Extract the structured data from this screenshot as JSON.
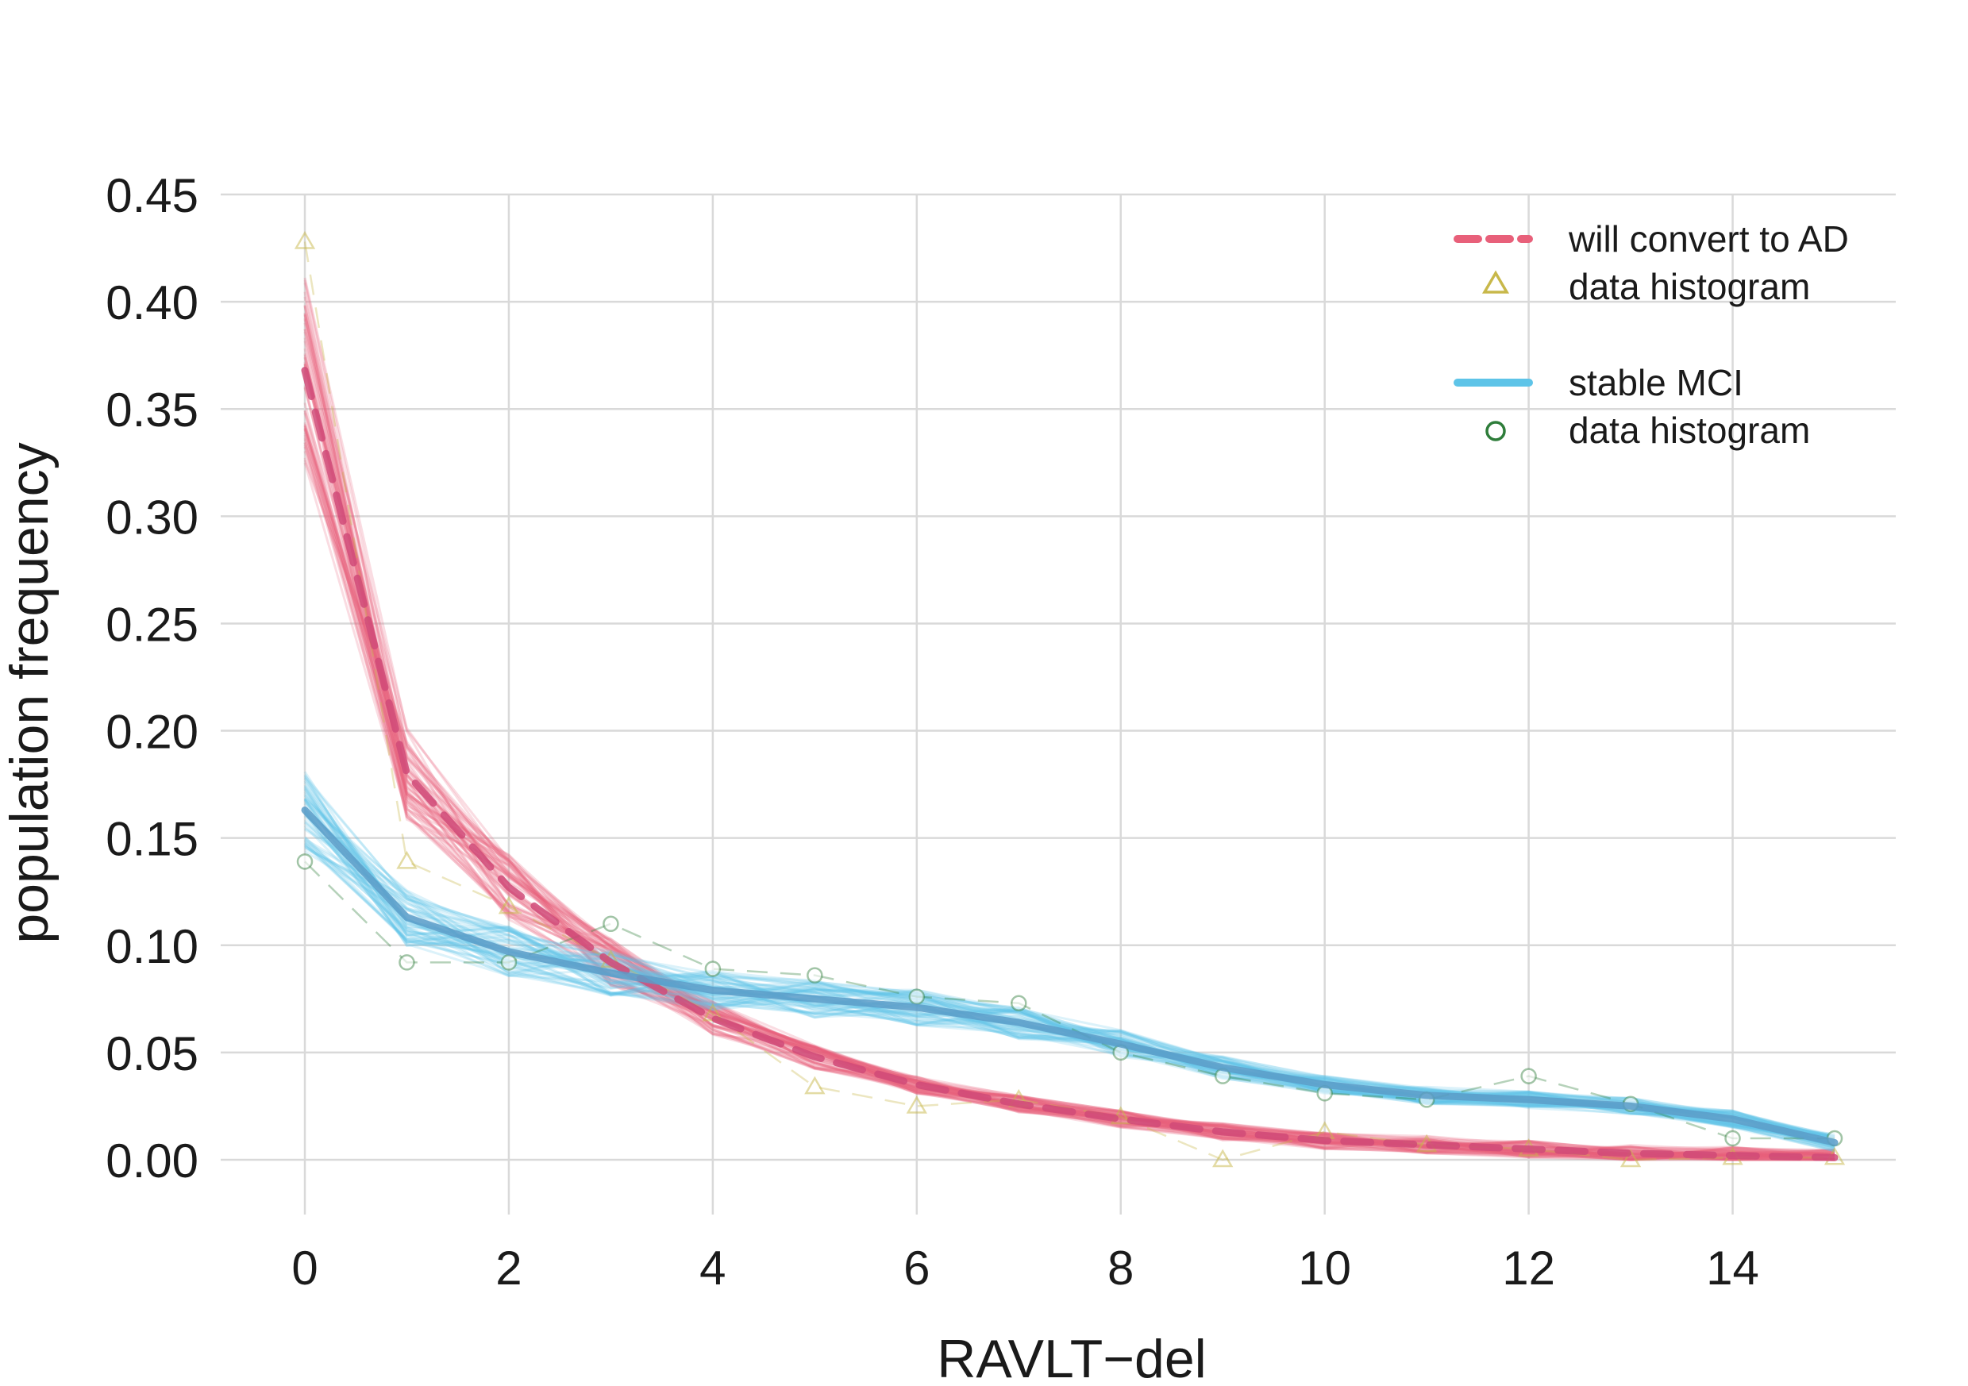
{
  "chart_data": {
    "type": "line",
    "xlabel": "RAVLT−del",
    "ylabel": "population frequency",
    "xlim": [
      -0.8,
      15.6
    ],
    "ylim": [
      -0.025,
      0.455
    ],
    "x_ticks": [
      0,
      2,
      4,
      6,
      8,
      10,
      12,
      14
    ],
    "y_ticks": [
      "0.00",
      "0.05",
      "0.10",
      "0.15",
      "0.20",
      "0.25",
      "0.30",
      "0.35",
      "0.40",
      "0.45"
    ],
    "grid": true,
    "legend_position": "top-right",
    "x": [
      0,
      1,
      2,
      3,
      4,
      5,
      6,
      7,
      8,
      9,
      10,
      11,
      12,
      13,
      14,
      15
    ],
    "series": [
      {
        "name": "will convert to AD",
        "style": "dashed",
        "color": "#e8607a",
        "mean_color": "#d04a78",
        "values": [
          0.368,
          0.18,
          0.127,
          0.092,
          0.066,
          0.048,
          0.035,
          0.026,
          0.019,
          0.013,
          0.009,
          0.007,
          0.005,
          0.003,
          0.002,
          0.001
        ],
        "data_histogram": {
          "name": "data histogram",
          "marker": "triangle",
          "color": "#c8b84a",
          "values": [
            0.428,
            0.139,
            0.118,
            0.093,
            0.068,
            0.034,
            0.025,
            0.028,
            0.02,
            0.0,
            0.013,
            0.007,
            0.005,
            0.0,
            0.001,
            0.001
          ]
        }
      },
      {
        "name": "stable MCI",
        "style": "solid",
        "color": "#5ec4e8",
        "mean_color": "#5b9cc8",
        "values": [
          0.163,
          0.113,
          0.097,
          0.087,
          0.079,
          0.075,
          0.071,
          0.064,
          0.054,
          0.043,
          0.035,
          0.03,
          0.028,
          0.025,
          0.019,
          0.008
        ],
        "data_histogram": {
          "name": "data histogram",
          "marker": "circle",
          "color": "#2e7d3a",
          "values": [
            0.139,
            0.092,
            0.092,
            0.11,
            0.089,
            0.086,
            0.076,
            0.073,
            0.05,
            0.039,
            0.031,
            0.028,
            0.039,
            0.026,
            0.01,
            0.01
          ]
        }
      }
    ]
  },
  "legend": [
    {
      "label": "will convert to AD",
      "kind": "dashed-line",
      "color": "#e8607a"
    },
    {
      "label": "data histogram",
      "kind": "triangle",
      "color": "#c8b84a"
    },
    {
      "label": "stable MCI",
      "kind": "solid-line",
      "color": "#5ec4e8"
    },
    {
      "label": "data histogram",
      "kind": "circle",
      "color": "#2e7d3a"
    }
  ]
}
